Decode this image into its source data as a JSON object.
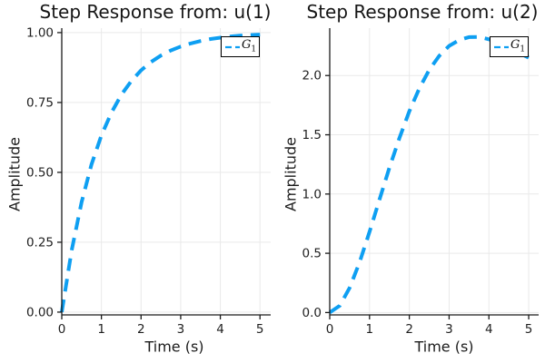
{
  "figure": {
    "background": "#ffffff",
    "accent_color": "#0E9FF2",
    "axis_color": "#1a1a1a",
    "grid_color": "#e9e9e9"
  },
  "chart_data": [
    {
      "type": "line",
      "title": "Step Response from: u(1)",
      "xlabel": "Time (s)",
      "ylabel": "Amplitude",
      "xlim": [
        0,
        5.27
      ],
      "ylim": [
        -0.01,
        1.016
      ],
      "grid": true,
      "legend_position": "top-right",
      "xticks": {
        "values": [
          0,
          1,
          2,
          3,
          4,
          5
        ],
        "labels": [
          "0",
          "1",
          "2",
          "3",
          "4",
          "5"
        ]
      },
      "yticks": {
        "values": [
          0,
          0.25,
          0.5,
          0.75,
          1.0
        ],
        "labels": [
          "0.00",
          "0.25",
          "0.50",
          "0.75",
          "1.00"
        ]
      },
      "legend": {
        "base": "G",
        "sub": "1"
      },
      "series": [
        {
          "name": "G_1",
          "color": "#0E9FF2",
          "style": "dashed",
          "line_width": 4,
          "x": [
            0,
            0.25,
            0.5,
            0.75,
            1,
            1.25,
            1.5,
            1.75,
            2,
            2.25,
            2.5,
            2.75,
            3,
            3.25,
            3.5,
            3.75,
            4,
            4.25,
            4.5,
            4.75,
            5
          ],
          "y": [
            0,
            0.221,
            0.393,
            0.528,
            0.632,
            0.713,
            0.777,
            0.826,
            0.865,
            0.895,
            0.918,
            0.936,
            0.95,
            0.961,
            0.97,
            0.977,
            0.982,
            0.986,
            0.989,
            0.991,
            0.993
          ]
        }
      ]
    },
    {
      "type": "line",
      "title": "Step Response from: u(2)",
      "xlabel": "Time (s)",
      "ylabel": "Amplitude",
      "xlim": [
        0,
        5.25
      ],
      "ylim": [
        -0.02,
        2.4
      ],
      "grid": true,
      "legend_position": "top-right",
      "xticks": {
        "values": [
          0,
          1,
          2,
          3,
          4,
          5
        ],
        "labels": [
          "0",
          "1",
          "2",
          "3",
          "4",
          "5"
        ]
      },
      "yticks": {
        "values": [
          0,
          0.5,
          1.0,
          1.5,
          2.0
        ],
        "labels": [
          "0.0",
          "0.5",
          "1.0",
          "1.5",
          "2.0"
        ]
      },
      "legend": {
        "base": "G",
        "sub": "1"
      },
      "series": [
        {
          "name": "G_1",
          "color": "#0E9FF2",
          "style": "dashed",
          "line_width": 4,
          "x": [
            0,
            0.25,
            0.5,
            0.75,
            1,
            1.25,
            1.5,
            1.75,
            2,
            2.25,
            2.5,
            2.75,
            3,
            3.25,
            3.5,
            3.75,
            4,
            4.25,
            4.5,
            4.75,
            5
          ],
          "y": [
            0,
            0.057,
            0.208,
            0.425,
            0.681,
            0.953,
            1.222,
            1.472,
            1.698,
            1.891,
            2.047,
            2.166,
            2.25,
            2.299,
            2.324,
            2.326,
            2.306,
            2.276,
            2.237,
            2.193,
            2.15
          ]
        }
      ]
    }
  ]
}
